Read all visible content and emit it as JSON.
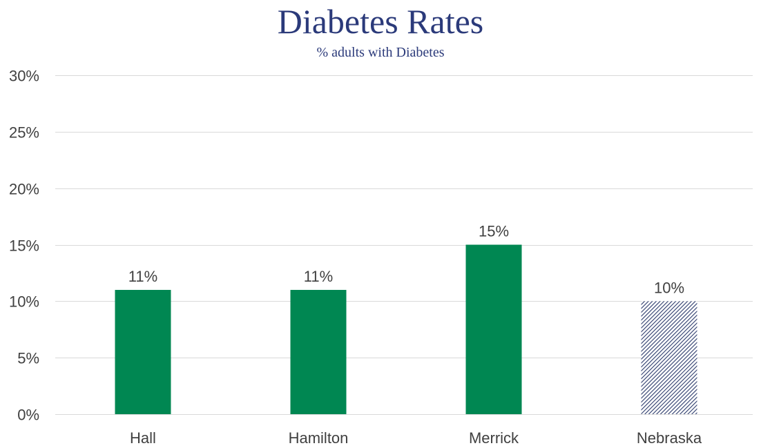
{
  "chart_data": {
    "type": "bar",
    "title": "Diabetes Rates",
    "subtitle": "% adults with Diabetes",
    "xlabel": "",
    "ylabel": "",
    "categories": [
      "Hall",
      "Hamilton",
      "Merrick",
      "Nebraska"
    ],
    "values": [
      11,
      11,
      15,
      10
    ],
    "data_labels": [
      "11%",
      "11%",
      "15%",
      "10%"
    ],
    "ylim": [
      0,
      30
    ],
    "y_ticks": [
      0,
      5,
      10,
      15,
      20,
      25,
      30
    ],
    "y_tick_labels": [
      "0%",
      "5%",
      "10%",
      "15%",
      "20%",
      "25%",
      "30%"
    ],
    "grid": true,
    "legend": "none",
    "colors": {
      "county_bar": "#008752",
      "state_bar_hatch": "#2b3a6b",
      "title": "#2b3a7a",
      "text": "#404040",
      "grid": "#d9d9d9"
    },
    "bar_styles": [
      "solid",
      "solid",
      "solid",
      "hatched"
    ]
  }
}
